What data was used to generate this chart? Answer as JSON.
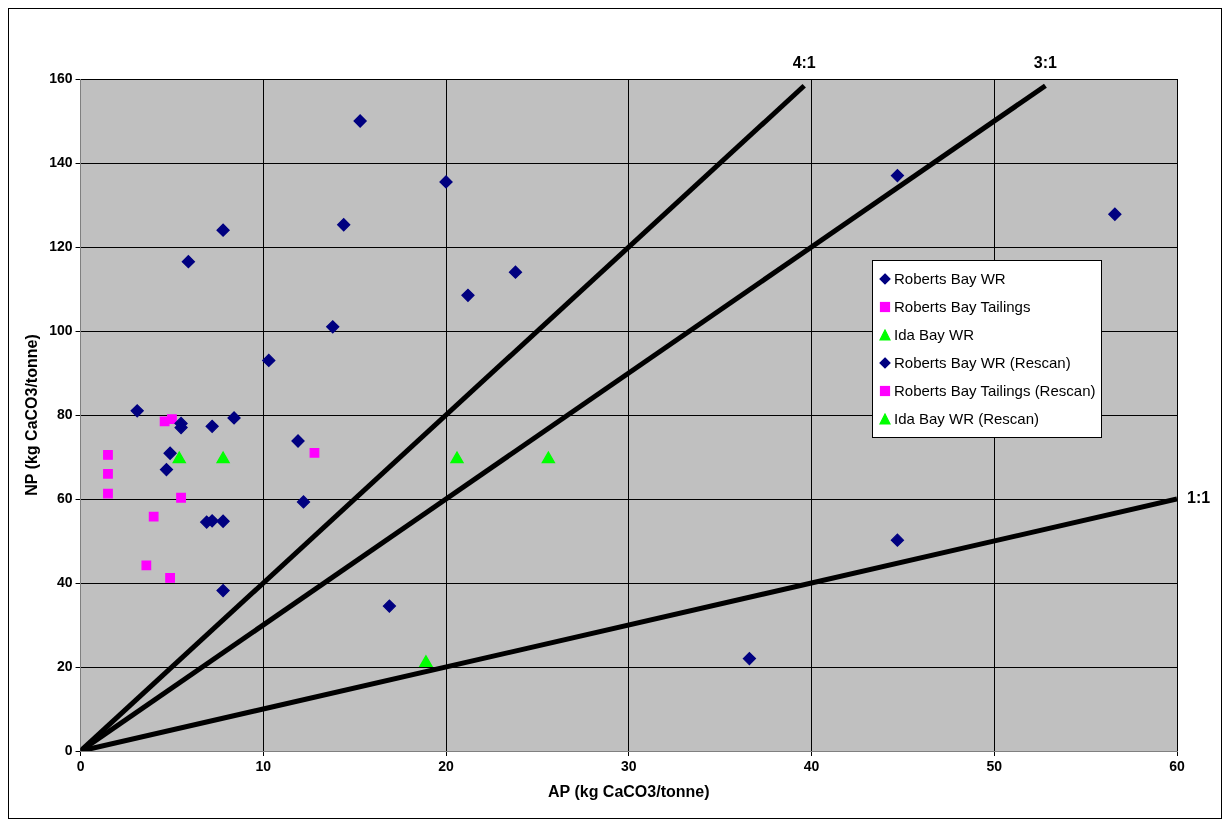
{
  "chart_data": {
    "type": "scatter",
    "xlabel": "AP (kg CaCO3/tonne)",
    "ylabel": "NP (kg CaCO3/tonne)",
    "xlim": [
      0,
      60
    ],
    "xticks": [
      0,
      10,
      20,
      30,
      40,
      50,
      60
    ],
    "ylim": [
      0,
      160
    ],
    "yticks": [
      0,
      20,
      40,
      60,
      80,
      100,
      120,
      140,
      160
    ],
    "grid": true,
    "legend": "right",
    "series": [
      {
        "name": "Roberts Bay WR",
        "color": "#000080",
        "marker": "diamond",
        "x": [
          5.9,
          7.8,
          20,
          14.4,
          23.8,
          21.2,
          13.8,
          10.3,
          4.9,
          5.5,
          5.5,
          7.2,
          8.4,
          11.9,
          12.2,
          6.9,
          7.2,
          7.8,
          16.9,
          44.7,
          56.6
        ],
        "values": [
          116.5,
          124,
          135.5,
          125.3,
          114,
          108.5,
          101,
          93,
          70.9,
          78,
          77,
          77.3,
          79.3,
          73.8,
          59.3,
          54.5,
          54.8,
          54.7,
          34.5,
          137,
          127.8
        ]
      },
      {
        "name": "Roberts Bay Tailings",
        "color": "#ff00ff",
        "marker": "square",
        "x": [
          1.5,
          4.6,
          5,
          12.8,
          5.5,
          4,
          3.6
        ],
        "values": [
          70.5,
          78.5,
          79,
          71,
          60.3,
          55.8,
          44.2
        ]
      },
      {
        "name": "Ida Bay WR",
        "color": "#00ff00",
        "marker": "triangle",
        "x": [
          5.4,
          7.8,
          20.6,
          25.6
        ],
        "values": [
          69.5,
          69.5,
          69.5,
          69.5
        ]
      },
      {
        "name": "Roberts Bay WR (Rescan)",
        "color": "#000080",
        "marker": "diamond",
        "x": [
          15.3,
          3.1,
          4.7,
          7.8,
          44.7,
          36.6
        ],
        "values": [
          150,
          81,
          67,
          38.2,
          50.2,
          22
        ]
      },
      {
        "name": "Roberts Bay Tailings (Rescan)",
        "color": "#ff00ff",
        "marker": "square",
        "x": [
          1.5,
          1.5,
          4.9
        ],
        "values": [
          66,
          61.3,
          41.2
        ]
      },
      {
        "name": "Ida Bay WR (Rescan)",
        "color": "#00ff00",
        "marker": "triangle",
        "x": [
          18.9
        ],
        "values": [
          21
        ]
      },
      {
        "name": "4:1",
        "type": "line",
        "color": "#000000",
        "marker": "none",
        "x": [
          0,
          39.6
        ],
        "values": [
          0,
          158.4
        ]
      },
      {
        "name": "3:1",
        "type": "line",
        "color": "#000000",
        "marker": "none",
        "x": [
          0,
          52.8
        ],
        "values": [
          0,
          158.4
        ]
      },
      {
        "name": "1:1",
        "type": "line",
        "color": "#000000",
        "marker": "none",
        "x": [
          0,
          60
        ],
        "values": [
          0,
          60
        ]
      }
    ]
  }
}
